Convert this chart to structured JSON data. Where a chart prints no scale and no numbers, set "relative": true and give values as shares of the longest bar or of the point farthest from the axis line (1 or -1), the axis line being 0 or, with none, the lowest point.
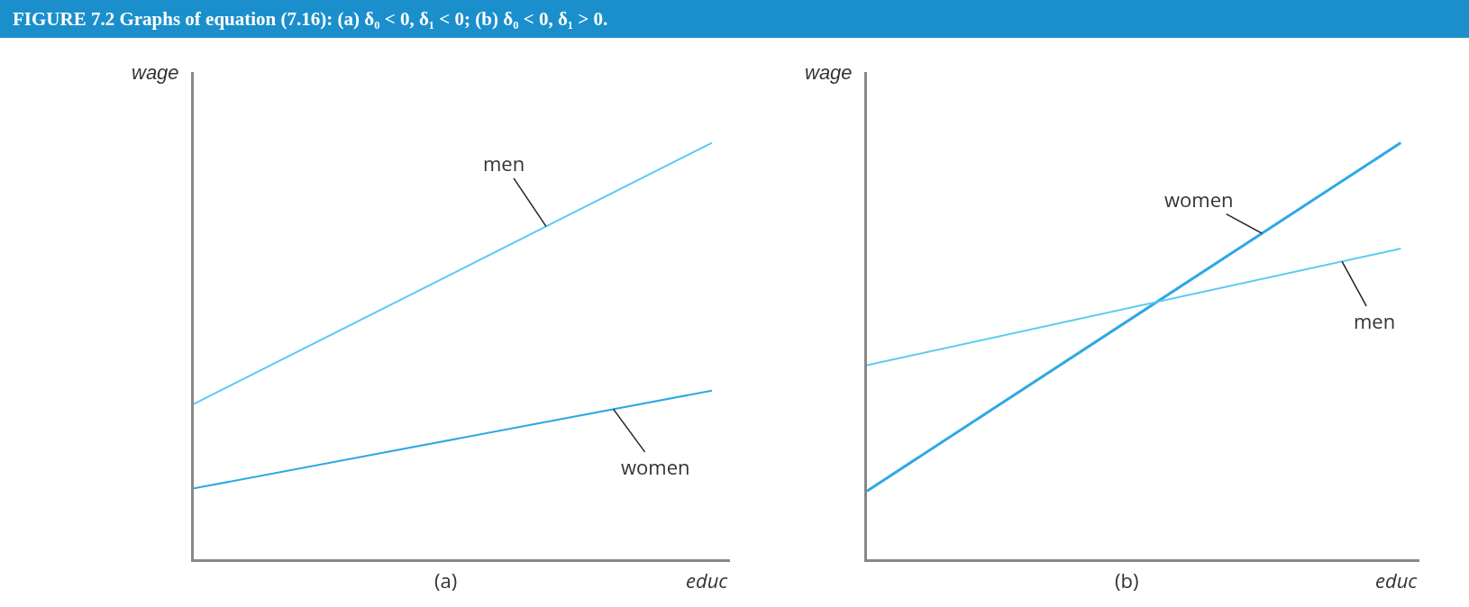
{
  "chart_data": [
    {
      "type": "line",
      "title": "FIGURE 7.2   Graphs of equation (7.16):  (a) δ₀ < 0, δ₁ < 0;  (b) δ₀ < 0, δ₁ > 0.",
      "xlabel": "educ",
      "ylabel": "wage",
      "annotations": [
        "(a)"
      ],
      "relative": true,
      "categories": [
        null,
        null
      ],
      "series": [
        {
          "name": "men",
          "color": "#5ccaf2",
          "values": [
            0.373,
            1
          ]
        },
        {
          "name": "women",
          "color": "#2ea8e4",
          "values": [
            0.17,
            0.405
          ]
        }
      ]
    },
    {
      "type": "line",
      "xlabel": "educ",
      "ylabel": "wage",
      "annotations": [
        "(b)"
      ],
      "relative": true,
      "categories": [
        null,
        null
      ],
      "series": [
        {
          "name": "women",
          "color": "#2ea8e4",
          "values": [
            0.164,
            1
          ]
        },
        {
          "name": "men",
          "color": "#5ccaf2",
          "values": [
            0.466,
            0.746
          ]
        }
      ]
    }
  ]
}
